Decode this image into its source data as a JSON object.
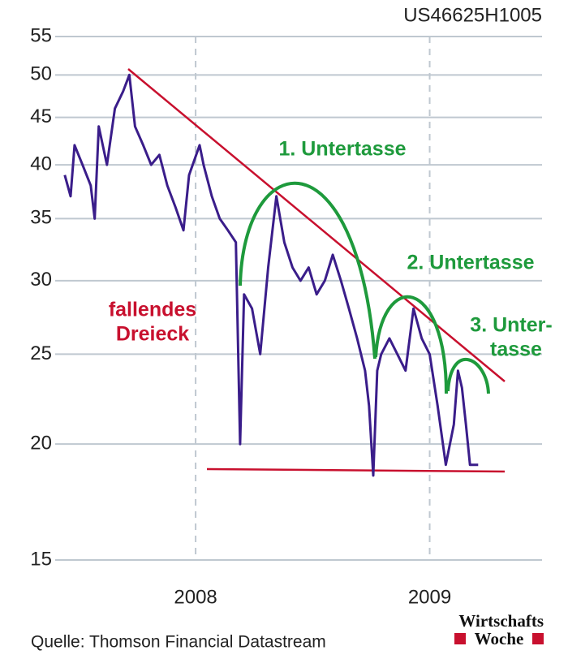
{
  "chart_data": {
    "type": "line",
    "identifier": "US46625H1005",
    "source": "Quelle: Thomson Financial Datastream",
    "logo": [
      "Wirtschafts",
      "Woche"
    ],
    "annotations": {
      "triangle": [
        "fallendes",
        "Dreieck"
      ],
      "saucer1": "1. Untertasse",
      "saucer2": "2. Untertasse",
      "saucer3": [
        "3. Unter-",
        "tasse"
      ]
    },
    "yscale": "log",
    "grid": true,
    "ylim": [
      15,
      55
    ],
    "yticks": [
      15,
      20,
      25,
      30,
      35,
      40,
      45,
      50,
      55
    ],
    "xlim": [
      2007.4,
      2009.48
    ],
    "xticks": [
      {
        "value": 2008,
        "label": "2008"
      },
      {
        "value": 2009,
        "label": "2009"
      }
    ],
    "series": [
      {
        "color": "#3a1d8a",
        "x": [
          2007.441,
          2007.466,
          2007.483,
          2007.517,
          2007.552,
          2007.569,
          2007.586,
          2007.621,
          2007.655,
          2007.69,
          2007.717,
          2007.741,
          2007.776,
          2007.81,
          2007.845,
          2007.879,
          2007.914,
          2007.948,
          2007.972,
          2008.017,
          2008.034,
          2008.069,
          2008.103,
          2008.138,
          2008.172,
          2008.19,
          2008.207,
          2008.241,
          2008.276,
          2008.31,
          2008.345,
          2008.379,
          2008.414,
          2008.448,
          2008.483,
          2008.517,
          2008.552,
          2008.586,
          2008.621,
          2008.655,
          2008.69,
          2008.724,
          2008.741,
          2008.759,
          2008.776,
          2008.793,
          2008.828,
          2008.862,
          2008.897,
          2008.931,
          2008.966,
          2009.0,
          2009.034,
          2009.069,
          2009.103,
          2009.121,
          2009.138,
          2009.155,
          2009.172,
          2009.207
        ],
        "values": [
          39,
          37,
          42,
          40,
          38,
          35,
          44,
          40,
          46,
          48,
          50,
          44,
          42,
          40,
          41,
          38,
          36,
          34,
          39,
          42,
          40,
          37,
          35,
          34,
          33,
          20,
          29,
          28,
          25,
          31,
          37,
          33,
          31,
          30,
          31,
          29,
          30,
          32,
          30,
          28,
          26,
          24,
          22,
          18.5,
          24,
          25,
          26,
          25,
          24,
          28,
          26,
          25,
          22,
          19,
          21,
          24,
          23,
          21,
          19,
          19
        ]
      }
    ]
  }
}
